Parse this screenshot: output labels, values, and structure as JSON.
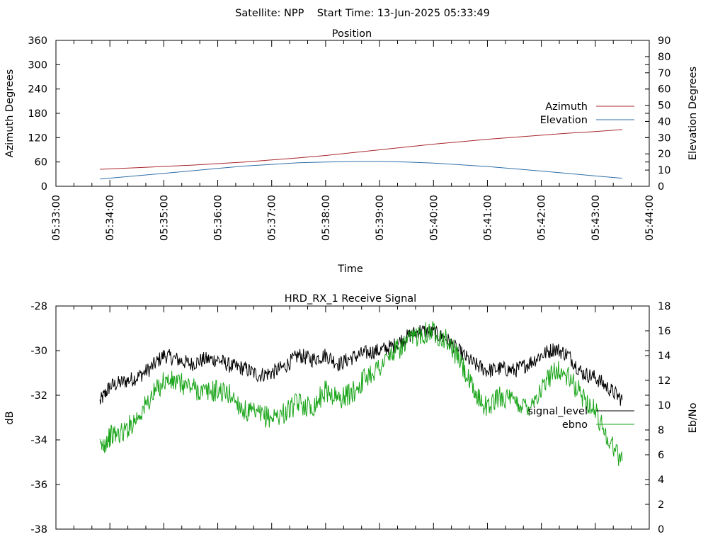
{
  "header": {
    "title": "Satellite: NPP    Start Time: 13-Jun-2025 05:33:49"
  },
  "chart_data": [
    {
      "type": "line",
      "title": "Position",
      "xlabel": "Time",
      "ylabel": "Azimuth Degrees",
      "y2label": "Elevation Degrees",
      "xlim": [
        "05:33:00",
        "05:44:00"
      ],
      "ylim": [
        0,
        360
      ],
      "y2lim": [
        0,
        90
      ],
      "x_ticks": [
        "05:33:00",
        "05:34:00",
        "05:35:00",
        "05:36:00",
        "05:37:00",
        "05:38:00",
        "05:39:00",
        "05:40:00",
        "05:41:00",
        "05:42:00",
        "05:43:00",
        "05:44:00"
      ],
      "y_ticks": [
        "0",
        "60",
        "120",
        "180",
        "240",
        "300",
        "360"
      ],
      "y2_ticks": [
        "0",
        "10",
        "20",
        "30",
        "40",
        "50",
        "60",
        "70",
        "80",
        "90"
      ],
      "legend_position": "right",
      "grid": false,
      "series": [
        {
          "name": "Azimuth",
          "axis": "left",
          "color": "#a8262c",
          "x": [
            "05:33:49",
            "05:34:30",
            "05:35:00",
            "05:35:30",
            "05:36:00",
            "05:36:30",
            "05:37:00",
            "05:37:30",
            "05:38:00",
            "05:38:30",
            "05:39:00",
            "05:39:30",
            "05:40:00",
            "05:40:30",
            "05:41:00",
            "05:41:30",
            "05:42:00",
            "05:42:30",
            "05:43:00",
            "05:43:30"
          ],
          "values": [
            42,
            46,
            49,
            52,
            56,
            60,
            65,
            70,
            76,
            83,
            90,
            97,
            104,
            110,
            116,
            121,
            126,
            131,
            135,
            140
          ]
        },
        {
          "name": "Elevation",
          "axis": "right",
          "color": "#2f6fa8",
          "x": [
            "05:33:49",
            "05:34:30",
            "05:35:00",
            "05:35:30",
            "05:36:00",
            "05:36:30",
            "05:37:00",
            "05:37:30",
            "05:38:00",
            "05:38:30",
            "05:39:00",
            "05:39:30",
            "05:40:00",
            "05:40:30",
            "05:41:00",
            "05:41:30",
            "05:42:00",
            "05:42:30",
            "05:43:00",
            "05:43:30"
          ],
          "values": [
            4.5,
            6.5,
            8,
            9.5,
            11,
            12.5,
            13.5,
            14.5,
            15,
            15.3,
            15.3,
            15,
            14.3,
            13.3,
            12.2,
            10.8,
            9.4,
            7.9,
            6.4,
            5
          ]
        }
      ]
    },
    {
      "type": "line",
      "title": "HRD_RX_1 Receive Signal",
      "xlabel": "",
      "ylabel": "dB",
      "y2label": "Eb/No",
      "xlim": [
        "05:33:00",
        "05:44:00"
      ],
      "ylim": [
        -38,
        -28
      ],
      "y2lim": [
        0,
        18
      ],
      "y_ticks": [
        "-28",
        "-30",
        "-32",
        "-34",
        "-36",
        "-38"
      ],
      "y2_ticks": [
        "0",
        "2",
        "4",
        "6",
        "8",
        "10",
        "12",
        "14",
        "16",
        "18"
      ],
      "legend_position": "right",
      "grid": false,
      "series": [
        {
          "name": "signal_level",
          "axis": "left",
          "color": "#000000",
          "x": [
            "05:33:49",
            "05:34:00",
            "05:34:15",
            "05:34:30",
            "05:34:45",
            "05:35:00",
            "05:35:15",
            "05:35:30",
            "05:35:45",
            "05:36:00",
            "05:36:15",
            "05:36:30",
            "05:36:45",
            "05:37:00",
            "05:37:15",
            "05:37:30",
            "05:37:45",
            "05:38:00",
            "05:38:15",
            "05:38:30",
            "05:38:45",
            "05:39:00",
            "05:39:15",
            "05:39:30",
            "05:39:45",
            "05:40:00",
            "05:40:15",
            "05:40:30",
            "05:40:45",
            "05:41:00",
            "05:41:15",
            "05:41:30",
            "05:41:45",
            "05:42:00",
            "05:42:15",
            "05:42:30",
            "05:42:45",
            "05:43:00",
            "05:43:15",
            "05:43:30"
          ],
          "values": [
            -32.3,
            -31.6,
            -31.4,
            -31.2,
            -30.8,
            -30.2,
            -30.4,
            -30.6,
            -30.4,
            -30.4,
            -30.7,
            -30.8,
            -31.1,
            -31.0,
            -30.7,
            -30.2,
            -30.4,
            -30.2,
            -30.6,
            -30.3,
            -30.1,
            -30.0,
            -29.8,
            -29.4,
            -29.1,
            -29.2,
            -29.5,
            -30.1,
            -30.6,
            -30.9,
            -30.8,
            -30.9,
            -30.6,
            -30.2,
            -29.9,
            -30.2,
            -31.0,
            -31.2,
            -31.7,
            -32.2
          ]
        },
        {
          "name": "ebno",
          "axis": "right",
          "color": "#1aa51a",
          "x": [
            "05:33:49",
            "05:34:00",
            "05:34:15",
            "05:34:30",
            "05:34:45",
            "05:35:00",
            "05:35:15",
            "05:35:30",
            "05:35:45",
            "05:36:00",
            "05:36:15",
            "05:36:30",
            "05:36:45",
            "05:37:00",
            "05:37:15",
            "05:37:30",
            "05:37:45",
            "05:38:00",
            "05:38:15",
            "05:38:30",
            "05:38:45",
            "05:39:00",
            "05:39:15",
            "05:39:30",
            "05:39:45",
            "05:40:00",
            "05:40:15",
            "05:40:30",
            "05:40:45",
            "05:41:00",
            "05:41:15",
            "05:41:30",
            "05:41:45",
            "05:42:00",
            "05:42:15",
            "05:42:30",
            "05:42:45",
            "05:43:00",
            "05:43:15",
            "05:43:30"
          ],
          "values": [
            6.5,
            7.5,
            7.8,
            9.0,
            10.5,
            12.0,
            11.8,
            11.5,
            11.0,
            11.2,
            10.8,
            9.5,
            9.2,
            9.0,
            9.4,
            10.2,
            9.8,
            11.2,
            10.5,
            11.0,
            12.3,
            13.1,
            14.2,
            15.0,
            15.8,
            16.0,
            15.2,
            13.5,
            11.0,
            9.8,
            10.8,
            10.2,
            9.9,
            11.2,
            13.0,
            12.2,
            10.8,
            9.5,
            7.2,
            5.5
          ]
        }
      ]
    }
  ]
}
